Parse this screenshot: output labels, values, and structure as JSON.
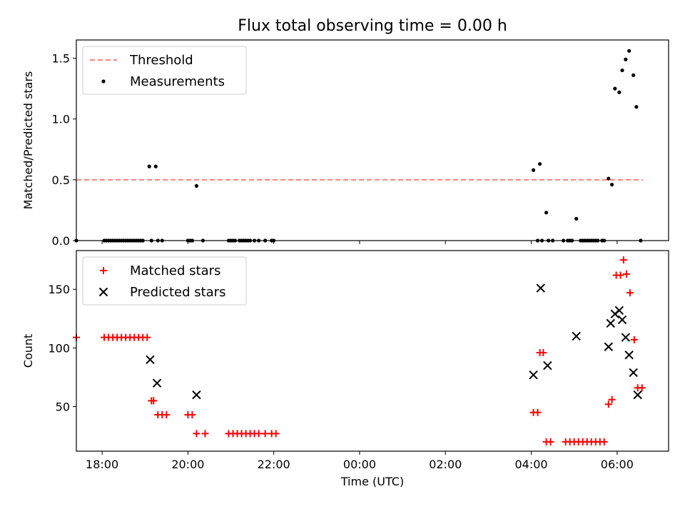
{
  "chart_data": [
    {
      "type": "scatter",
      "title": "Flux total observing time = 0.00 h",
      "xlabel": "",
      "ylabel": "Matched/Predicted stars",
      "xlim": [
        -6.6,
        7.2
      ],
      "ylim": [
        0,
        1.65
      ],
      "yticks": [
        0.0,
        0.5,
        1.0,
        1.5
      ],
      "ytick_labels": [
        "0.0",
        "0.5",
        "1.0",
        "1.5"
      ],
      "legend_position": "top-left",
      "series": [
        {
          "name": "Threshold",
          "kind": "dashed-line",
          "color": "#ff7f7f",
          "x": [
            -6.6,
            6.6
          ],
          "y": [
            0.5,
            0.5
          ]
        },
        {
          "name": "Measurements",
          "kind": "dot",
          "color": "#000000",
          "points": [
            [
              -6.6,
              0.0
            ],
            [
              -5.95,
              0.0
            ],
            [
              -5.9,
              0.0
            ],
            [
              -5.85,
              0.0
            ],
            [
              -5.8,
              0.0
            ],
            [
              -5.75,
              0.0
            ],
            [
              -5.7,
              0.0
            ],
            [
              -5.65,
              0.0
            ],
            [
              -5.6,
              0.0
            ],
            [
              -5.55,
              0.0
            ],
            [
              -5.5,
              0.0
            ],
            [
              -5.45,
              0.0
            ],
            [
              -5.4,
              0.0
            ],
            [
              -5.35,
              0.0
            ],
            [
              -5.3,
              0.0
            ],
            [
              -5.25,
              0.0
            ],
            [
              -5.2,
              0.0
            ],
            [
              -5.15,
              0.0
            ],
            [
              -5.1,
              0.0
            ],
            [
              -5.05,
              0.0
            ],
            [
              -4.9,
              0.61
            ],
            [
              -4.75,
              0.61
            ],
            [
              -4.85,
              0.0
            ],
            [
              -4.7,
              0.0
            ],
            [
              -4.6,
              0.0
            ],
            [
              -4.0,
              0.0
            ],
            [
              -3.95,
              0.0
            ],
            [
              -3.9,
              0.0
            ],
            [
              -3.8,
              0.45
            ],
            [
              -3.65,
              0.0
            ],
            [
              -3.05,
              0.0
            ],
            [
              -3.0,
              0.0
            ],
            [
              -2.95,
              0.0
            ],
            [
              -2.9,
              0.0
            ],
            [
              -2.8,
              0.0
            ],
            [
              -2.75,
              0.0
            ],
            [
              -2.7,
              0.0
            ],
            [
              -2.65,
              0.0
            ],
            [
              -2.6,
              0.0
            ],
            [
              -2.55,
              0.0
            ],
            [
              -2.45,
              0.0
            ],
            [
              -2.35,
              0.0
            ],
            [
              -2.2,
              0.0
            ],
            [
              -2.05,
              0.0
            ],
            [
              -2.0,
              0.0
            ],
            [
              4.05,
              0.58
            ],
            [
              4.15,
              0.0
            ],
            [
              4.2,
              0.63
            ],
            [
              4.25,
              0.0
            ],
            [
              4.35,
              0.23
            ],
            [
              4.4,
              0.0
            ],
            [
              4.5,
              0.0
            ],
            [
              4.75,
              0.0
            ],
            [
              4.85,
              0.0
            ],
            [
              4.9,
              0.0
            ],
            [
              4.95,
              0.0
            ],
            [
              5.05,
              0.18
            ],
            [
              5.15,
              0.0
            ],
            [
              5.2,
              0.0
            ],
            [
              5.25,
              0.0
            ],
            [
              5.3,
              0.0
            ],
            [
              5.35,
              0.0
            ],
            [
              5.4,
              0.0
            ],
            [
              5.45,
              0.0
            ],
            [
              5.5,
              0.0
            ],
            [
              5.55,
              0.0
            ],
            [
              5.65,
              0.0
            ],
            [
              5.7,
              0.0
            ],
            [
              5.8,
              0.51
            ],
            [
              5.88,
              0.46
            ],
            [
              5.95,
              1.25
            ],
            [
              6.05,
              1.22
            ],
            [
              6.12,
              1.4
            ],
            [
              6.2,
              1.49
            ],
            [
              6.28,
              1.56
            ],
            [
              6.38,
              1.36
            ],
            [
              6.45,
              1.1
            ],
            [
              6.55,
              0.0
            ]
          ]
        }
      ]
    },
    {
      "type": "scatter",
      "title": "",
      "xlabel": "Time (UTC)",
      "ylabel": "Count",
      "xlim": [
        -6.6,
        7.2
      ],
      "ylim": [
        12,
        183
      ],
      "yticks": [
        50,
        100,
        150
      ],
      "ytick_labels": [
        "50",
        "100",
        "150"
      ],
      "xticks": [
        -6,
        -4,
        -2,
        0,
        2,
        4,
        6
      ],
      "xtick_labels": [
        "18:00",
        "20:00",
        "22:00",
        "00:00",
        "02:00",
        "04:00",
        "06:00"
      ],
      "legend_position": "top-left",
      "series": [
        {
          "name": "Matched stars",
          "kind": "plus",
          "color": "#ff0000",
          "points": [
            [
              -6.6,
              109
            ],
            [
              -5.95,
              109
            ],
            [
              -5.85,
              109
            ],
            [
              -5.75,
              109
            ],
            [
              -5.65,
              109
            ],
            [
              -5.55,
              109
            ],
            [
              -5.45,
              109
            ],
            [
              -5.35,
              109
            ],
            [
              -5.25,
              109
            ],
            [
              -5.15,
              109
            ],
            [
              -5.05,
              109
            ],
            [
              -4.95,
              109
            ],
            [
              -4.85,
              55
            ],
            [
              -4.8,
              55
            ],
            [
              -4.7,
              43
            ],
            [
              -4.6,
              43
            ],
            [
              -4.5,
              43
            ],
            [
              -4.0,
              43
            ],
            [
              -3.9,
              43
            ],
            [
              -3.8,
              27
            ],
            [
              -3.6,
              27
            ],
            [
              -3.05,
              27
            ],
            [
              -2.95,
              27
            ],
            [
              -2.85,
              27
            ],
            [
              -2.75,
              27
            ],
            [
              -2.65,
              27
            ],
            [
              -2.55,
              27
            ],
            [
              -2.45,
              27
            ],
            [
              -2.35,
              27
            ],
            [
              -2.2,
              27
            ],
            [
              -2.05,
              27
            ],
            [
              -1.95,
              27
            ],
            [
              4.05,
              45
            ],
            [
              4.15,
              45
            ],
            [
              4.2,
              96
            ],
            [
              4.28,
              96
            ],
            [
              4.35,
              20
            ],
            [
              4.45,
              20
            ],
            [
              4.8,
              20
            ],
            [
              4.9,
              20
            ],
            [
              5.0,
              20
            ],
            [
              5.1,
              20
            ],
            [
              5.2,
              20
            ],
            [
              5.3,
              20
            ],
            [
              5.4,
              20
            ],
            [
              5.5,
              20
            ],
            [
              5.6,
              20
            ],
            [
              5.7,
              20
            ],
            [
              5.8,
              52
            ],
            [
              5.88,
              56
            ],
            [
              5.98,
              162
            ],
            [
              6.08,
              162
            ],
            [
              6.15,
              175
            ],
            [
              6.22,
              163
            ],
            [
              6.3,
              147
            ],
            [
              6.4,
              107
            ],
            [
              6.48,
              66
            ],
            [
              6.58,
              66
            ]
          ]
        },
        {
          "name": "Predicted stars",
          "kind": "cross",
          "color": "#000000",
          "points": [
            [
              -4.88,
              90
            ],
            [
              -4.72,
              70
            ],
            [
              -3.8,
              60
            ],
            [
              4.05,
              77
            ],
            [
              4.22,
              151
            ],
            [
              4.38,
              85
            ],
            [
              5.05,
              110
            ],
            [
              5.8,
              101
            ],
            [
              5.85,
              121
            ],
            [
              5.95,
              129
            ],
            [
              6.05,
              132
            ],
            [
              6.12,
              124
            ],
            [
              6.2,
              109
            ],
            [
              6.28,
              94
            ],
            [
              6.38,
              79
            ],
            [
              6.48,
              60
            ]
          ]
        }
      ]
    }
  ]
}
